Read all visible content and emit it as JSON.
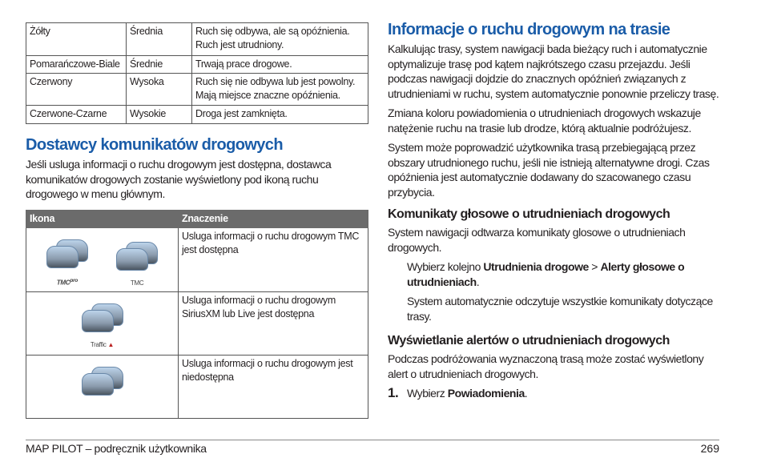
{
  "color_table": {
    "rows": [
      [
        "Żółty",
        "Średnia",
        "Ruch się odbywa, ale są opóźnienia. Ruch jest utrudniony."
      ],
      [
        "Pomarańczowe-Biale",
        "Średnie",
        "Trwają prace drogowe."
      ],
      [
        "Czerwony",
        "Wysoka",
        "Ruch się nie odbywa lub jest powolny. Mają miejsce znaczne opóźnienia."
      ],
      [
        "Czerwone-Czarne",
        "Wysokie",
        "Droga jest zamknięta."
      ]
    ]
  },
  "providers": {
    "heading": "Dostawcy komunikatów drogowych",
    "text": "Jeśli usluga informacji o ruchu drogowym jest dostępna, dostawca komunikatów drogowych zostanie wyświetlony pod ikoną ruchu drogowego w menu głównym.",
    "table": {
      "headers": [
        "Ikona",
        "Znaczenie"
      ],
      "rows": [
        {
          "icons": [
            "TMC pro logo",
            "TMC"
          ],
          "meaning": "Usluga informacji o ruchu drogowym TMC jest dostępna"
        },
        {
          "icons": [
            "Traffic logo"
          ],
          "meaning": "Usluga informacji o ruchu drogowym SiriusXM lub Live jest dostępna"
        },
        {
          "icons": [],
          "meaning": "Usluga informacji o ruchu drogowym jest niedostępna"
        }
      ]
    }
  },
  "route_info": {
    "heading": "Informacje o ruchu drogowym na trasie",
    "p1": "Kalkulując trasy, system nawigacji bada bieżący ruch i automatycznie optymalizuje trasę pod kątem najkrótszego czasu przejazdu. Jeśli podczas nawigacji dojdzie do znacznych opóźnień związanych z utrudnieniami w ruchu, system automatycznie ponownie przeliczy trasę.",
    "p2": "Zmiana koloru powiadomienia o utrudnieniach drogowych wskazuje natężenie ruchu na trasie lub drodze, którą aktualnie podróżujesz.",
    "p3": "System może poprowadzić użytkownika trasą przebiegającą przez obszary utrudnionego ruchu, jeśli nie istnieją alternatywne drogi. Czas opóźnienia jest automatycznie dodawany do szacowanego czasu przybycia."
  },
  "voice": {
    "heading": "Komunikaty głosowe o utrudnieniach drogowych",
    "p1": "System nawigacji odtwarza komunikaty glosowe o utrudnieniach drogowych.",
    "step_pre": "Wybierz kolejno ",
    "step_b1": "Utrudnienia drogowe",
    "step_sep": " > ",
    "step_b2": "Alerty głosowe o utrudnieniach",
    "step_end": ".",
    "p2": "System automatycznie odczytuje wszystkie komunikaty dotyczące trasy."
  },
  "alerts": {
    "heading": "Wyświetlanie alertów o utrudnieniach drogowych",
    "p1": "Podczas podróżowania wyznaczoną trasą może zostać wyświetlony alert o utrudnieniach drogowych.",
    "step_num": "1.",
    "step_pre": "Wybierz ",
    "step_b": "Powiadomienia",
    "step_end": "."
  },
  "footer": {
    "title": "MAP PILOT – podręcznik użytkownika",
    "page": "269"
  }
}
